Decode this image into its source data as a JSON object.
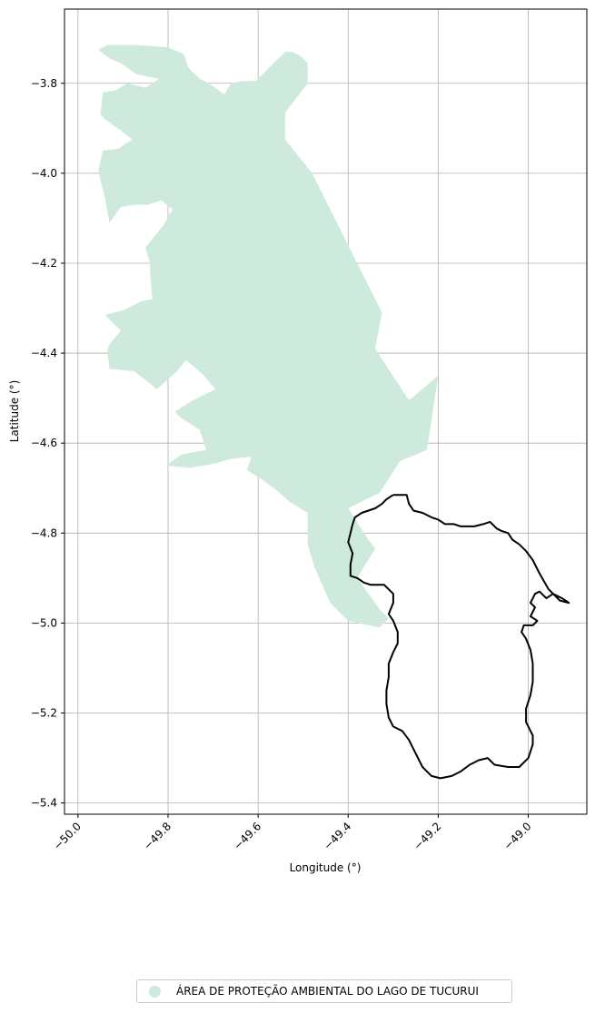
{
  "chart_data": {
    "type": "map",
    "xlabel": "Longitude (°)",
    "ylabel": "Latitude (°)",
    "xlim": [
      -50.03,
      -48.87
    ],
    "ylim": [
      -5.425,
      -3.635
    ],
    "x_ticks": [
      -50.0,
      -49.8,
      -49.6,
      -49.4,
      -49.2,
      -49.0
    ],
    "x_tick_labels": [
      "−50.0",
      "−49.8",
      "−49.6",
      "−49.4",
      "−49.2",
      "−49.0"
    ],
    "y_ticks": [
      -3.8,
      -4.0,
      -4.2,
      -4.4,
      -4.6,
      -4.8,
      -5.0,
      -5.2,
      -5.4
    ],
    "y_tick_labels": [
      "−3.8",
      "−4.0",
      "−4.2",
      "−4.4",
      "−4.6",
      "−4.8",
      "−5.0",
      "−5.2",
      "−5.4"
    ],
    "grid": true,
    "legend_placement": "bottom-center, below axes",
    "series": [
      {
        "name": "ÁREA DE PROTEÇÃO AMBIENTAL DO LAGO DE TUCURUI",
        "kind": "filled-polygon",
        "color": "#cdeadc",
        "coords": [
          [
            -49.935,
            -3.715
          ],
          [
            -49.87,
            -3.715
          ],
          [
            -49.8,
            -3.72
          ],
          [
            -49.765,
            -3.735
          ],
          [
            -49.755,
            -3.765
          ],
          [
            -49.73,
            -3.79
          ],
          [
            -49.71,
            -3.8
          ],
          [
            -49.695,
            -3.81
          ],
          [
            -49.675,
            -3.825
          ],
          [
            -49.66,
            -3.8
          ],
          [
            -49.635,
            -3.795
          ],
          [
            -49.605,
            -3.795
          ],
          [
            -49.59,
            -3.78
          ],
          [
            -49.57,
            -3.76
          ],
          [
            -49.555,
            -3.745
          ],
          [
            -49.54,
            -3.73
          ],
          [
            -49.525,
            -3.73
          ],
          [
            -49.505,
            -3.74
          ],
          [
            -49.49,
            -3.755
          ],
          [
            -49.49,
            -3.8
          ],
          [
            -49.54,
            -3.865
          ],
          [
            -49.54,
            -3.925
          ],
          [
            -49.48,
            -4.0
          ],
          [
            -49.445,
            -4.07
          ],
          [
            -49.405,
            -4.15
          ],
          [
            -49.36,
            -4.24
          ],
          [
            -49.325,
            -4.31
          ],
          [
            -49.34,
            -4.39
          ],
          [
            -49.265,
            -4.505
          ],
          [
            -49.2,
            -4.45
          ],
          [
            -49.225,
            -4.615
          ],
          [
            -49.285,
            -4.64
          ],
          [
            -49.33,
            -4.71
          ],
          [
            -49.4,
            -4.745
          ],
          [
            -49.355,
            -4.815
          ],
          [
            -49.34,
            -4.835
          ],
          [
            -49.38,
            -4.9
          ],
          [
            -49.33,
            -4.97
          ],
          [
            -49.31,
            -4.99
          ],
          [
            -49.33,
            -5.01
          ],
          [
            -49.4,
            -4.995
          ],
          [
            -49.44,
            -4.955
          ],
          [
            -49.475,
            -4.875
          ],
          [
            -49.49,
            -4.825
          ],
          [
            -49.49,
            -4.755
          ],
          [
            -49.53,
            -4.73
          ],
          [
            -49.565,
            -4.7
          ],
          [
            -49.6,
            -4.675
          ],
          [
            -49.625,
            -4.66
          ],
          [
            -49.615,
            -4.63
          ],
          [
            -49.66,
            -4.635
          ],
          [
            -49.695,
            -4.645
          ],
          [
            -49.75,
            -4.655
          ],
          [
            -49.805,
            -4.65
          ],
          [
            -49.77,
            -4.625
          ],
          [
            -49.715,
            -4.615
          ],
          [
            -49.73,
            -4.57
          ],
          [
            -49.77,
            -4.545
          ],
          [
            -49.785,
            -4.53
          ],
          [
            -49.745,
            -4.505
          ],
          [
            -49.695,
            -4.48
          ],
          [
            -49.72,
            -4.45
          ],
          [
            -49.76,
            -4.415
          ],
          [
            -49.78,
            -4.44
          ],
          [
            -49.825,
            -4.48
          ],
          [
            -49.875,
            -4.44
          ],
          [
            -49.93,
            -4.435
          ],
          [
            -49.935,
            -4.395
          ],
          [
            -49.93,
            -4.38
          ],
          [
            -49.905,
            -4.35
          ],
          [
            -49.94,
            -4.315
          ],
          [
            -49.9,
            -4.305
          ],
          [
            -49.86,
            -4.285
          ],
          [
            -49.835,
            -4.28
          ],
          [
            -49.84,
            -4.22
          ],
          [
            -49.84,
            -4.2
          ],
          [
            -49.85,
            -4.165
          ],
          [
            -49.81,
            -4.115
          ],
          [
            -49.79,
            -4.08
          ],
          [
            -49.815,
            -4.06
          ],
          [
            -49.845,
            -4.07
          ],
          [
            -49.875,
            -4.07
          ],
          [
            -49.905,
            -4.075
          ],
          [
            -49.93,
            -4.11
          ],
          [
            -49.94,
            -4.055
          ],
          [
            -49.955,
            -3.995
          ],
          [
            -49.945,
            -3.95
          ],
          [
            -49.91,
            -3.945
          ],
          [
            -49.88,
            -3.925
          ],
          [
            -49.905,
            -3.905
          ],
          [
            -49.94,
            -3.88
          ],
          [
            -49.95,
            -3.87
          ],
          [
            -49.945,
            -3.82
          ],
          [
            -49.915,
            -3.815
          ],
          [
            -49.89,
            -3.8
          ],
          [
            -49.85,
            -3.81
          ],
          [
            -49.82,
            -3.79
          ],
          [
            -49.87,
            -3.78
          ],
          [
            -49.905,
            -3.755
          ],
          [
            -49.93,
            -3.745
          ],
          [
            -49.955,
            -3.725
          ],
          [
            -49.935,
            -3.715
          ]
        ]
      },
      {
        "name": "",
        "kind": "outline",
        "color": "#000000",
        "coords": [
          [
            -49.3,
            -4.715
          ],
          [
            -49.27,
            -4.715
          ],
          [
            -49.265,
            -4.735
          ],
          [
            -49.255,
            -4.75
          ],
          [
            -49.235,
            -4.755
          ],
          [
            -49.215,
            -4.765
          ],
          [
            -49.2,
            -4.77
          ],
          [
            -49.185,
            -4.78
          ],
          [
            -49.165,
            -4.78
          ],
          [
            -49.15,
            -4.785
          ],
          [
            -49.12,
            -4.785
          ],
          [
            -49.1,
            -4.78
          ],
          [
            -49.085,
            -4.775
          ],
          [
            -49.07,
            -4.79
          ],
          [
            -49.06,
            -4.795
          ],
          [
            -49.045,
            -4.8
          ],
          [
            -49.035,
            -4.815
          ],
          [
            -49.02,
            -4.825
          ],
          [
            -49.005,
            -4.84
          ],
          [
            -48.99,
            -4.86
          ],
          [
            -48.975,
            -4.89
          ],
          [
            -48.955,
            -4.925
          ],
          [
            -48.93,
            -4.95
          ],
          [
            -48.91,
            -4.955
          ],
          [
            -48.925,
            -4.945
          ],
          [
            -48.945,
            -4.935
          ],
          [
            -48.96,
            -4.945
          ],
          [
            -48.975,
            -4.93
          ],
          [
            -48.985,
            -4.935
          ],
          [
            -48.995,
            -4.955
          ],
          [
            -48.985,
            -4.965
          ],
          [
            -48.995,
            -4.985
          ],
          [
            -48.98,
            -4.995
          ],
          [
            -48.99,
            -5.005
          ],
          [
            -49.01,
            -5.005
          ],
          [
            -49.015,
            -5.02
          ],
          [
            -49.005,
            -5.035
          ],
          [
            -48.995,
            -5.06
          ],
          [
            -48.99,
            -5.09
          ],
          [
            -48.99,
            -5.13
          ],
          [
            -48.995,
            -5.16
          ],
          [
            -49.005,
            -5.19
          ],
          [
            -49.005,
            -5.22
          ],
          [
            -48.99,
            -5.25
          ],
          [
            -48.99,
            -5.27
          ],
          [
            -49.0,
            -5.3
          ],
          [
            -49.02,
            -5.32
          ],
          [
            -49.045,
            -5.32
          ],
          [
            -49.075,
            -5.315
          ],
          [
            -49.09,
            -5.3
          ],
          [
            -49.11,
            -5.305
          ],
          [
            -49.13,
            -5.315
          ],
          [
            -49.15,
            -5.33
          ],
          [
            -49.17,
            -5.34
          ],
          [
            -49.195,
            -5.345
          ],
          [
            -49.215,
            -5.34
          ],
          [
            -49.235,
            -5.32
          ],
          [
            -49.25,
            -5.29
          ],
          [
            -49.265,
            -5.26
          ],
          [
            -49.28,
            -5.24
          ],
          [
            -49.3,
            -5.23
          ],
          [
            -49.31,
            -5.21
          ],
          [
            -49.315,
            -5.18
          ],
          [
            -49.315,
            -5.15
          ],
          [
            -49.31,
            -5.12
          ],
          [
            -49.31,
            -5.09
          ],
          [
            -49.3,
            -5.065
          ],
          [
            -49.29,
            -5.045
          ],
          [
            -49.29,
            -5.02
          ],
          [
            -49.3,
            -4.995
          ],
          [
            -49.31,
            -4.98
          ],
          [
            -49.3,
            -4.955
          ],
          [
            -49.3,
            -4.935
          ],
          [
            -49.32,
            -4.915
          ],
          [
            -49.35,
            -4.915
          ],
          [
            -49.365,
            -4.91
          ],
          [
            -49.38,
            -4.9
          ],
          [
            -49.395,
            -4.895
          ],
          [
            -49.395,
            -4.87
          ],
          [
            -49.39,
            -4.845
          ],
          [
            -49.4,
            -4.82
          ],
          [
            -49.395,
            -4.8
          ],
          [
            -49.39,
            -4.78
          ],
          [
            -49.385,
            -4.765
          ],
          [
            -49.37,
            -4.755
          ],
          [
            -49.355,
            -4.75
          ],
          [
            -49.34,
            -4.745
          ],
          [
            -49.325,
            -4.735
          ],
          [
            -49.315,
            -4.725
          ],
          [
            -49.3,
            -4.715
          ]
        ]
      }
    ]
  },
  "legend": {
    "label": "ÁREA DE PROTEÇÃO AMBIENTAL DO LAGO DE TUCURUI",
    "color": "#cdeadc"
  }
}
